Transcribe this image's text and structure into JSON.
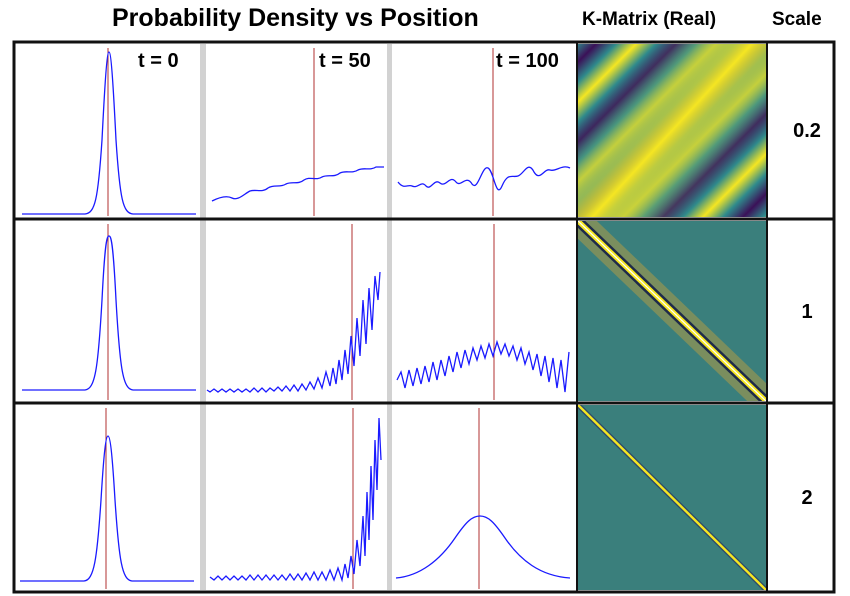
{
  "header": {
    "title": "Probability Density vs Position",
    "kmatrix": "K-Matrix (Real)",
    "scale": "Scale"
  },
  "time_labels": [
    "t = 0",
    "t = 50",
    "t = 100"
  ],
  "rows": [
    {
      "scale": "0.2",
      "kmatrix_style": "wide-stripes"
    },
    {
      "scale": "1",
      "kmatrix_style": "narrow-diagonal"
    },
    {
      "scale": "2",
      "kmatrix_style": "thin-diagonal"
    }
  ],
  "colors": {
    "curve": "#1a1aff",
    "marker": "#b03030",
    "kmatrix_yellow": "#f5e622",
    "kmatrix_teal": "#3a7f7c",
    "kmatrix_purple": "#3b1158"
  }
}
